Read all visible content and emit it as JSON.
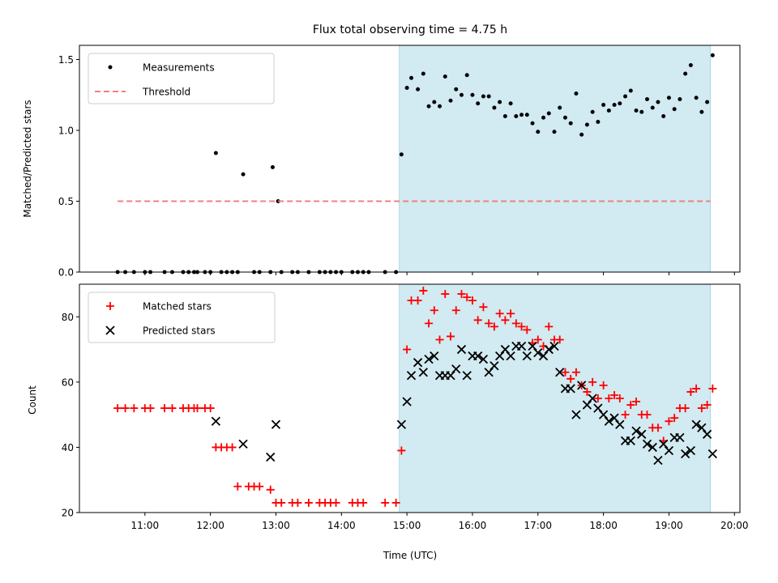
{
  "chart_data": [
    {
      "type": "scatter",
      "title": "Flux total observing time = 4.75 h",
      "xlabel": "",
      "ylabel": "Matched/Predicted stars",
      "xlim": [
        "10:00",
        "20:05"
      ],
      "ylim": [
        0,
        1.6
      ],
      "yticks": [
        "0.0",
        "0.5",
        "1.0",
        "1.5"
      ],
      "xticks": [
        "11:00",
        "12:00",
        "13:00",
        "14:00",
        "15:00",
        "16:00",
        "17:00",
        "18:00",
        "19:00",
        "20:00"
      ],
      "show_xtick_labels": false,
      "shaded_span": {
        "start": "14:53",
        "end": "19:38",
        "color": "#add8e6"
      },
      "legend": {
        "placement": "top-left",
        "entries": [
          "Measurements",
          "Threshold"
        ]
      },
      "series": [
        {
          "name": "Measurements",
          "marker": "dot",
          "color": "#000000",
          "points": [
            [
              "10:35",
              0
            ],
            [
              "10:42",
              0
            ],
            [
              "10:50",
              0
            ],
            [
              "11:00",
              0
            ],
            [
              "11:05",
              0
            ],
            [
              "11:18",
              0
            ],
            [
              "11:25",
              0
            ],
            [
              "11:35",
              0
            ],
            [
              "11:40",
              0
            ],
            [
              "11:45",
              0
            ],
            [
              "11:48",
              0
            ],
            [
              "11:55",
              0
            ],
            [
              "12:00",
              0
            ],
            [
              "12:05",
              0.84
            ],
            [
              "12:10",
              0
            ],
            [
              "12:15",
              0
            ],
            [
              "12:20",
              0
            ],
            [
              "12:25",
              0
            ],
            [
              "12:30",
              0.69
            ],
            [
              "12:40",
              0
            ],
            [
              "12:45",
              0
            ],
            [
              "12:55",
              0
            ],
            [
              "12:57",
              0.74
            ],
            [
              "13:02",
              0.5
            ],
            [
              "13:05",
              0
            ],
            [
              "13:15",
              0
            ],
            [
              "13:20",
              0
            ],
            [
              "13:30",
              0
            ],
            [
              "13:40",
              0
            ],
            [
              "13:45",
              0
            ],
            [
              "13:50",
              0
            ],
            [
              "13:55",
              0
            ],
            [
              "14:00",
              0
            ],
            [
              "14:10",
              0
            ],
            [
              "14:15",
              0
            ],
            [
              "14:20",
              0
            ],
            [
              "14:25",
              0
            ],
            [
              "14:40",
              0
            ],
            [
              "14:50",
              0
            ],
            [
              "14:55",
              0.83
            ],
            [
              "15:00",
              1.3
            ],
            [
              "15:04",
              1.37
            ],
            [
              "15:10",
              1.29
            ],
            [
              "15:15",
              1.4
            ],
            [
              "15:20",
              1.17
            ],
            [
              "15:25",
              1.2
            ],
            [
              "15:30",
              1.17
            ],
            [
              "15:35",
              1.38
            ],
            [
              "15:40",
              1.21
            ],
            [
              "15:45",
              1.29
            ],
            [
              "15:50",
              1.25
            ],
            [
              "15:55",
              1.39
            ],
            [
              "16:00",
              1.25
            ],
            [
              "16:05",
              1.19
            ],
            [
              "16:10",
              1.24
            ],
            [
              "16:15",
              1.24
            ],
            [
              "16:20",
              1.16
            ],
            [
              "16:25",
              1.2
            ],
            [
              "16:30",
              1.1
            ],
            [
              "16:35",
              1.19
            ],
            [
              "16:40",
              1.1
            ],
            [
              "16:45",
              1.11
            ],
            [
              "16:50",
              1.11
            ],
            [
              "16:55",
              1.05
            ],
            [
              "17:00",
              0.99
            ],
            [
              "17:05",
              1.09
            ],
            [
              "17:10",
              1.12
            ],
            [
              "17:15",
              0.99
            ],
            [
              "17:20",
              1.16
            ],
            [
              "17:25",
              1.09
            ],
            [
              "17:30",
              1.05
            ],
            [
              "17:35",
              1.26
            ],
            [
              "17:40",
              0.97
            ],
            [
              "17:45",
              1.04
            ],
            [
              "17:50",
              1.13
            ],
            [
              "17:55",
              1.06
            ],
            [
              "18:00",
              1.18
            ],
            [
              "18:05",
              1.14
            ],
            [
              "18:10",
              1.18
            ],
            [
              "18:15",
              1.19
            ],
            [
              "18:20",
              1.24
            ],
            [
              "18:25",
              1.28
            ],
            [
              "18:30",
              1.14
            ],
            [
              "18:35",
              1.13
            ],
            [
              "18:40",
              1.22
            ],
            [
              "18:45",
              1.16
            ],
            [
              "18:50",
              1.2
            ],
            [
              "18:55",
              1.1
            ],
            [
              "19:00",
              1.23
            ],
            [
              "19:05",
              1.15
            ],
            [
              "19:10",
              1.22
            ],
            [
              "19:15",
              1.4
            ],
            [
              "19:20",
              1.46
            ],
            [
              "19:25",
              1.23
            ],
            [
              "19:30",
              1.13
            ],
            [
              "19:35",
              1.2
            ],
            [
              "19:40",
              1.53
            ]
          ]
        },
        {
          "name": "Threshold",
          "marker": "dashed-line",
          "color": "#f08080",
          "points": [
            [
              "10:35",
              0.5
            ],
            [
              "19:38",
              0.5
            ]
          ]
        }
      ]
    },
    {
      "type": "scatter",
      "title": "",
      "xlabel": "Time (UTC)",
      "ylabel": "Count",
      "xlim": [
        "10:00",
        "20:05"
      ],
      "ylim": [
        20,
        90
      ],
      "yticks": [
        "20",
        "40",
        "60",
        "80"
      ],
      "xticks": [
        "11:00",
        "12:00",
        "13:00",
        "14:00",
        "15:00",
        "16:00",
        "17:00",
        "18:00",
        "19:00",
        "20:00"
      ],
      "show_xtick_labels": true,
      "shaded_span": {
        "start": "14:53",
        "end": "19:38",
        "color": "#add8e6"
      },
      "legend": {
        "placement": "top-left",
        "entries": [
          "Matched stars",
          "Predicted stars"
        ]
      },
      "series": [
        {
          "name": "Matched stars",
          "marker": "plus",
          "color": "#ff0000",
          "points": [
            [
              "10:35",
              52
            ],
            [
              "10:42",
              52
            ],
            [
              "10:50",
              52
            ],
            [
              "11:00",
              52
            ],
            [
              "11:05",
              52
            ],
            [
              "11:18",
              52
            ],
            [
              "11:25",
              52
            ],
            [
              "11:35",
              52
            ],
            [
              "11:40",
              52
            ],
            [
              "11:45",
              52
            ],
            [
              "11:48",
              52
            ],
            [
              "11:55",
              52
            ],
            [
              "12:00",
              52
            ],
            [
              "12:05",
              40
            ],
            [
              "12:10",
              40
            ],
            [
              "12:15",
              40
            ],
            [
              "12:20",
              40
            ],
            [
              "12:25",
              28
            ],
            [
              "12:35",
              28
            ],
            [
              "12:40",
              28
            ],
            [
              "12:45",
              28
            ],
            [
              "12:55",
              27
            ],
            [
              "13:00",
              23
            ],
            [
              "13:05",
              23
            ],
            [
              "13:15",
              23
            ],
            [
              "13:20",
              23
            ],
            [
              "13:30",
              23
            ],
            [
              "13:40",
              23
            ],
            [
              "13:45",
              23
            ],
            [
              "13:50",
              23
            ],
            [
              "13:55",
              23
            ],
            [
              "14:10",
              23
            ],
            [
              "14:15",
              23
            ],
            [
              "14:20",
              23
            ],
            [
              "14:40",
              23
            ],
            [
              "14:50",
              23
            ],
            [
              "14:55",
              39
            ],
            [
              "15:00",
              70
            ],
            [
              "15:04",
              85
            ],
            [
              "15:10",
              85
            ],
            [
              "15:15",
              88
            ],
            [
              "15:20",
              78
            ],
            [
              "15:25",
              82
            ],
            [
              "15:30",
              73
            ],
            [
              "15:35",
              87
            ],
            [
              "15:40",
              74
            ],
            [
              "15:45",
              82
            ],
            [
              "15:50",
              87
            ],
            [
              "15:55",
              86
            ],
            [
              "16:00",
              85
            ],
            [
              "16:05",
              79
            ],
            [
              "16:10",
              83
            ],
            [
              "16:15",
              78
            ],
            [
              "16:20",
              77
            ],
            [
              "16:25",
              81
            ],
            [
              "16:30",
              79
            ],
            [
              "16:35",
              81
            ],
            [
              "16:40",
              78
            ],
            [
              "16:45",
              77
            ],
            [
              "16:50",
              76
            ],
            [
              "16:55",
              72
            ],
            [
              "17:00",
              73
            ],
            [
              "17:05",
              71
            ],
            [
              "17:10",
              77
            ],
            [
              "17:15",
              73
            ],
            [
              "17:20",
              73
            ],
            [
              "17:25",
              63
            ],
            [
              "17:30",
              61
            ],
            [
              "17:35",
              63
            ],
            [
              "17:40",
              59
            ],
            [
              "17:45",
              57
            ],
            [
              "17:50",
              60
            ],
            [
              "17:55",
              55
            ],
            [
              "18:00",
              59
            ],
            [
              "18:05",
              55
            ],
            [
              "18:10",
              56
            ],
            [
              "18:15",
              55
            ],
            [
              "18:20",
              50
            ],
            [
              "18:25",
              53
            ],
            [
              "18:30",
              54
            ],
            [
              "18:35",
              50
            ],
            [
              "18:40",
              50
            ],
            [
              "18:45",
              46
            ],
            [
              "18:50",
              46
            ],
            [
              "18:55",
              42
            ],
            [
              "19:00",
              48
            ],
            [
              "19:05",
              49
            ],
            [
              "19:10",
              52
            ],
            [
              "19:15",
              52
            ],
            [
              "19:20",
              57
            ],
            [
              "19:25",
              58
            ],
            [
              "19:30",
              52
            ],
            [
              "19:35",
              53
            ],
            [
              "19:40",
              58
            ]
          ]
        },
        {
          "name": "Predicted stars",
          "marker": "x",
          "color": "#000000",
          "points": [
            [
              "12:05",
              48
            ],
            [
              "12:30",
              41
            ],
            [
              "12:55",
              37
            ],
            [
              "13:00",
              47
            ],
            [
              "14:55",
              47
            ],
            [
              "15:00",
              54
            ],
            [
              "15:04",
              62
            ],
            [
              "15:10",
              66
            ],
            [
              "15:15",
              63
            ],
            [
              "15:20",
              67
            ],
            [
              "15:25",
              68
            ],
            [
              "15:30",
              62
            ],
            [
              "15:35",
              62
            ],
            [
              "15:40",
              62
            ],
            [
              "15:45",
              64
            ],
            [
              "15:50",
              70
            ],
            [
              "15:55",
              62
            ],
            [
              "16:00",
              68
            ],
            [
              "16:05",
              68
            ],
            [
              "16:10",
              67
            ],
            [
              "16:15",
              63
            ],
            [
              "16:20",
              65
            ],
            [
              "16:25",
              68
            ],
            [
              "16:30",
              70
            ],
            [
              "16:35",
              68
            ],
            [
              "16:40",
              71
            ],
            [
              "16:45",
              71
            ],
            [
              "16:50",
              68
            ],
            [
              "16:55",
              71
            ],
            [
              "17:00",
              69
            ],
            [
              "17:05",
              68
            ],
            [
              "17:10",
              70
            ],
            [
              "17:15",
              71
            ],
            [
              "17:20",
              63
            ],
            [
              "17:25",
              58
            ],
            [
              "17:30",
              58
            ],
            [
              "17:35",
              50
            ],
            [
              "17:40",
              59
            ],
            [
              "17:45",
              53
            ],
            [
              "17:50",
              55
            ],
            [
              "17:55",
              52
            ],
            [
              "18:00",
              50
            ],
            [
              "18:05",
              48
            ],
            [
              "18:10",
              49
            ],
            [
              "18:15",
              47
            ],
            [
              "18:20",
              42
            ],
            [
              "18:25",
              42
            ],
            [
              "18:30",
              45
            ],
            [
              "18:35",
              44
            ],
            [
              "18:40",
              41
            ],
            [
              "18:45",
              40
            ],
            [
              "18:50",
              36
            ],
            [
              "18:55",
              41
            ],
            [
              "19:00",
              39
            ],
            [
              "19:05",
              43
            ],
            [
              "19:10",
              43
            ],
            [
              "19:15",
              38
            ],
            [
              "19:20",
              39
            ],
            [
              "19:25",
              47
            ],
            [
              "19:30",
              46
            ],
            [
              "19:35",
              44
            ],
            [
              "19:40",
              38
            ]
          ]
        }
      ]
    }
  ]
}
